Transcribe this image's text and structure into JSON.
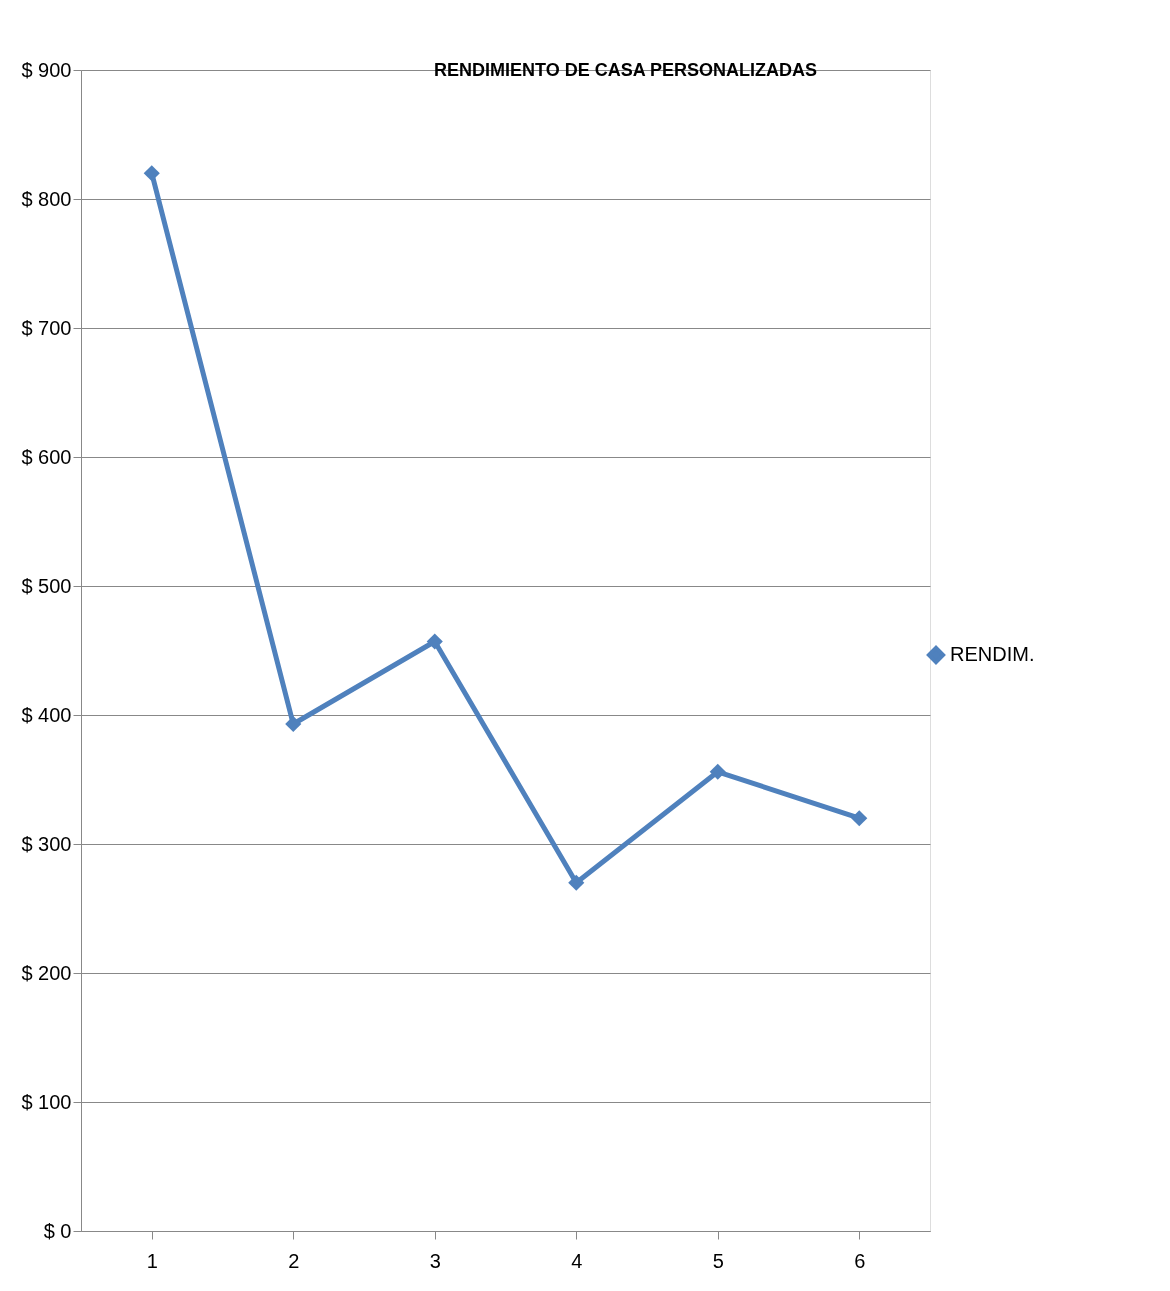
{
  "chart_data": {
    "type": "line",
    "title": "RENDIMIENTO  DE CASA PERSONALIZADAS",
    "categories": [
      "1",
      "2",
      "3",
      "4",
      "5",
      "6"
    ],
    "series": [
      {
        "name": "RENDIM.",
        "color": "#4f81bd",
        "values": [
          820,
          393,
          457,
          270,
          356,
          320
        ]
      }
    ],
    "ylim": [
      0,
      900
    ],
    "yticks": [
      {
        "value": 0,
        "label": "$ 0"
      },
      {
        "value": 100,
        "label": "$ 100"
      },
      {
        "value": 200,
        "label": "$ 200"
      },
      {
        "value": 300,
        "label": "$ 300"
      },
      {
        "value": 400,
        "label": "$ 400"
      },
      {
        "value": 500,
        "label": "$ 500"
      },
      {
        "value": 600,
        "label": "$ 600"
      },
      {
        "value": 700,
        "label": "$ 700"
      },
      {
        "value": 800,
        "label": "$ 800"
      },
      {
        "value": 900,
        "label": "$ 900"
      }
    ],
    "grid": "y",
    "legend": "right",
    "marker": "diamond",
    "line_style": "solid"
  }
}
